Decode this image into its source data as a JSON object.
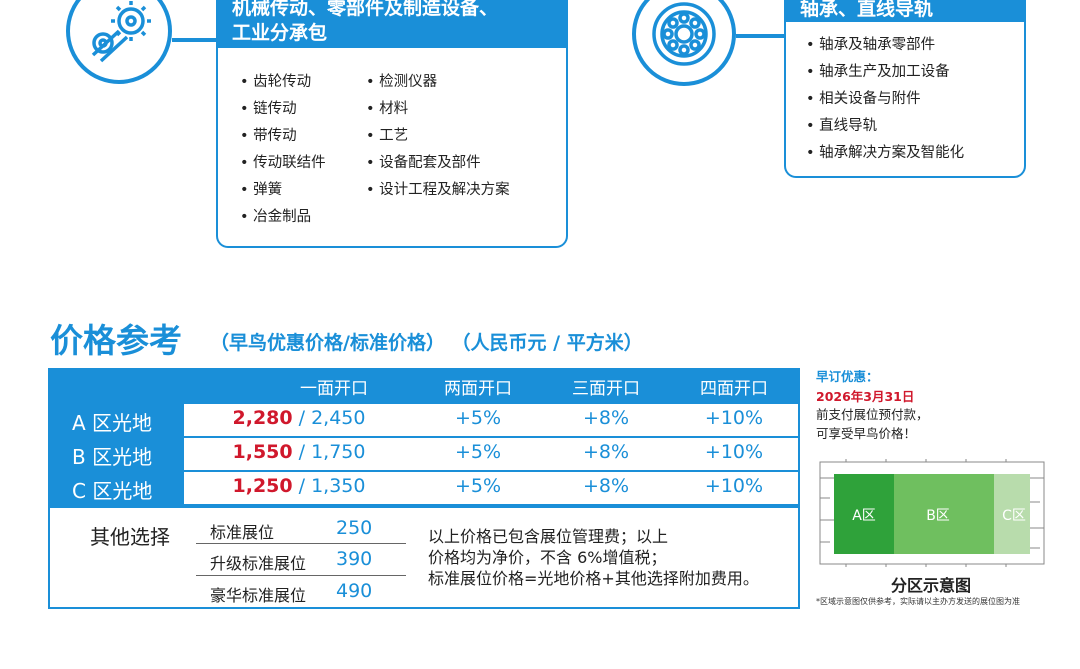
{
  "categories": {
    "mechanical": {
      "title_line1": "机械传动、零部件及制造设备、",
      "title_line2": "工业分承包",
      "icon": "gears-chain-icon",
      "col1": [
        "齿轮传动",
        "链传动",
        "带传动",
        "传动联结件",
        "弹簧",
        "冶金制品"
      ],
      "col2": [
        "检测仪器",
        "材料",
        "工艺",
        "设备配套及部件",
        "设计工程及解决方案"
      ]
    },
    "bearing": {
      "title": "轴承、直线导轨",
      "icon": "bearing-icon",
      "items": [
        "轴承及轴承零部件",
        "轴承生产及加工设备",
        "相关设备与附件",
        "直线导轨",
        "轴承解决方案及智能化"
      ]
    }
  },
  "price": {
    "title": "价格参考",
    "subtitle": "（早鸟优惠价格/标准价格） （人民币元 / 平方米）",
    "columns": [
      "一面开口",
      "两面开口",
      "三面开口",
      "四面开口"
    ],
    "rows": [
      {
        "label": "A 区光地",
        "early": "2,280",
        "standard": " / 2,450",
        "two": "+5%",
        "three": "+8%",
        "four": "+10%"
      },
      {
        "label": "B 区光地",
        "early": "1,550",
        "standard": " / 1,750",
        "two": "+5%",
        "three": "+8%",
        "four": "+10%"
      },
      {
        "label": "C 区光地",
        "early": "1,250",
        "standard": " / 1,350",
        "two": "+5%",
        "three": "+8%",
        "four": "+10%"
      }
    ],
    "other_title": "其他选择",
    "options": [
      {
        "name": "标准展位",
        "value": "250"
      },
      {
        "name": "升级标准展位",
        "value": "390"
      },
      {
        "name": "豪华标准展位",
        "value": "490"
      }
    ],
    "notes": [
      "以上价格已包含展位管理费；以上",
      "价格均为净价，不含 6%增值税；",
      "标准展位价格=光地价格+其他选择附加费用。"
    ]
  },
  "early_bird": {
    "label": "早订优惠：",
    "date": "2026年3月31日",
    "line1": "前支付展位预付款，",
    "line2": "可享受早鸟价格！"
  },
  "zone_map": {
    "zones": [
      "A区",
      "B区",
      "C区"
    ],
    "caption": "分区示意图",
    "footnote": "*区域示意图仅供参考，实际请以主办方发送的展位图为准"
  },
  "colors": {
    "brand_blue": "#1a8fd8",
    "early_red": "#d0182c",
    "zone_a": "#2fa23a",
    "zone_b": "#6fbf5f",
    "zone_c": "#b8dcac"
  }
}
